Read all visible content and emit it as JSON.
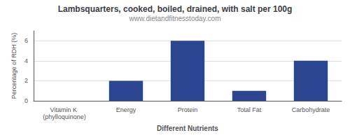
{
  "chart_data": {
    "type": "bar",
    "title": "Lambsquarters, cooked, boiled, drained, with salt per 100g",
    "subtitle": "www.dietandfitnesstoday.com",
    "xlabel": "Different Nutrients",
    "ylabel": "Percentage of RDH (%)",
    "categories": [
      "Vitamin K (phylloquinone)",
      "Energy",
      "Protein",
      "Total Fat",
      "Carbohydrate"
    ],
    "values": [
      0,
      2,
      6,
      1,
      4
    ],
    "color": "#2b4590",
    "ylim": [
      0,
      7
    ],
    "yticks": [
      0,
      2,
      4,
      6
    ],
    "grid": true
  }
}
